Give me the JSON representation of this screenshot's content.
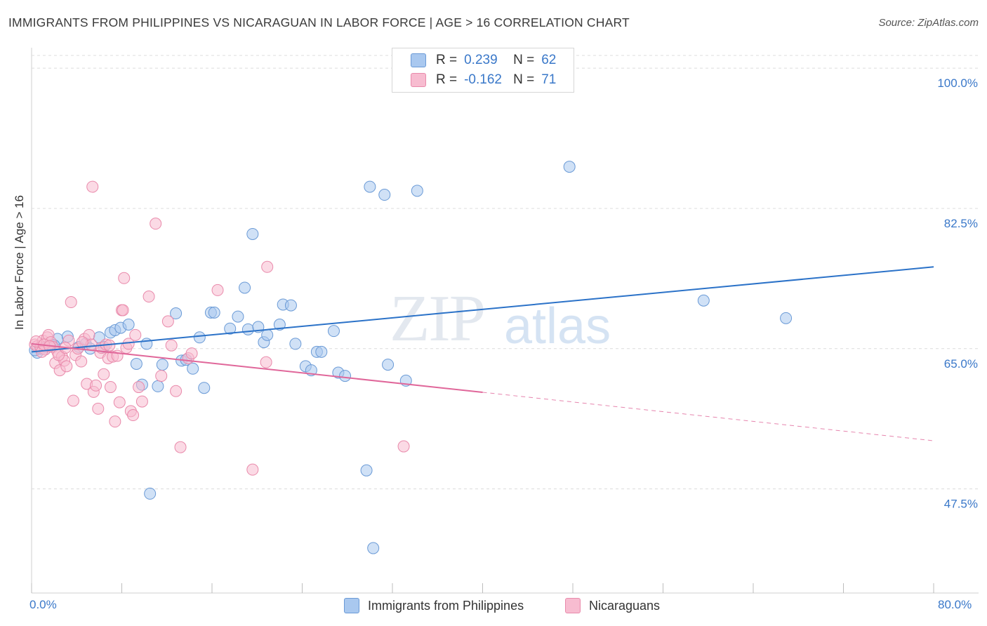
{
  "header": {
    "title": "IMMIGRANTS FROM PHILIPPINES VS NICARAGUAN IN LABOR FORCE | AGE > 16 CORRELATION CHART",
    "source": "Source: ZipAtlas.com"
  },
  "legend": {
    "rows": [
      {
        "r_label": "R =",
        "r_value": "0.239",
        "n_label": "N =",
        "n_value": "62"
      },
      {
        "r_label": "R =",
        "r_value": "-0.162",
        "n_label": "N =",
        "n_value": "71"
      }
    ]
  },
  "watermark": {
    "part1": "ZIP",
    "part2": "atlas"
  },
  "colors": {
    "philippines_fill": "#a9c8ef",
    "philippines_stroke": "#6a9ad6",
    "philippines_line": "#2b72c8",
    "nicaraguans_fill": "#f7bcd0",
    "nicaraguans_stroke": "#e98aab",
    "nicaraguans_line": "#e0679a",
    "tick_label": "#3a78c9"
  },
  "chart_data": {
    "type": "scatter",
    "title": "IMMIGRANTS FROM PHILIPPINES VS NICARAGUAN IN LABOR FORCE | AGE > 16 CORRELATION CHART",
    "xlabel": "",
    "ylabel": "In Labor Force | Age > 16",
    "xlim": [
      0,
      80
    ],
    "ylim": [
      34.5,
      101.5
    ],
    "x_tick_labels": [
      "0.0%",
      "80.0%"
    ],
    "y_ticks": [
      47.5,
      65.0,
      82.5,
      100.0
    ],
    "y_tick_labels": [
      "47.5%",
      "65.0%",
      "82.5%",
      "100.0%"
    ],
    "grid": true,
    "legend_position": "top-center",
    "series": [
      {
        "name": "Immigrants from Philippines",
        "r": 0.239,
        "n": 62,
        "trend": {
          "x": [
            0,
            80
          ],
          "y": [
            64.6,
            75.2
          ],
          "dashed_from": null
        },
        "points": [
          [
            0.5,
            64.5
          ],
          [
            1.0,
            65.1
          ],
          [
            1.4,
            65.3
          ],
          [
            1.8,
            65.5
          ],
          [
            2.3,
            66.2
          ],
          [
            3.2,
            66.5
          ],
          [
            4.2,
            65.2
          ],
          [
            4.8,
            65.6
          ],
          [
            5.2,
            65.0
          ],
          [
            6.0,
            66.4
          ],
          [
            6.4,
            65.2
          ],
          [
            7.0,
            67.0
          ],
          [
            7.4,
            67.3
          ],
          [
            7.9,
            67.6
          ],
          [
            8.6,
            68.0
          ],
          [
            9.3,
            63.1
          ],
          [
            9.8,
            60.5
          ],
          [
            10.2,
            65.6
          ],
          [
            11.2,
            60.3
          ],
          [
            11.6,
            63.0
          ],
          [
            12.8,
            69.4
          ],
          [
            13.3,
            63.5
          ],
          [
            13.7,
            63.6
          ],
          [
            14.3,
            62.5
          ],
          [
            14.9,
            66.4
          ],
          [
            15.3,
            60.1
          ],
          [
            15.9,
            69.5
          ],
          [
            16.2,
            69.5
          ],
          [
            17.6,
            67.5
          ],
          [
            18.3,
            69.0
          ],
          [
            18.9,
            72.6
          ],
          [
            19.2,
            67.4
          ],
          [
            19.6,
            79.3
          ],
          [
            20.1,
            67.7
          ],
          [
            20.6,
            65.8
          ],
          [
            20.9,
            66.7
          ],
          [
            22.0,
            68.0
          ],
          [
            22.3,
            70.5
          ],
          [
            23.0,
            70.4
          ],
          [
            23.4,
            65.6
          ],
          [
            24.3,
            62.8
          ],
          [
            24.8,
            62.3
          ],
          [
            25.3,
            64.6
          ],
          [
            25.7,
            64.6
          ],
          [
            26.8,
            67.2
          ],
          [
            27.2,
            62.0
          ],
          [
            27.8,
            61.6
          ],
          [
            29.7,
            49.8
          ],
          [
            30.0,
            85.2
          ],
          [
            30.3,
            40.1
          ],
          [
            31.3,
            84.2
          ],
          [
            31.6,
            63.0
          ],
          [
            33.2,
            61.0
          ],
          [
            34.2,
            84.7
          ],
          [
            47.7,
            87.7
          ],
          [
            59.6,
            71.0
          ],
          [
            66.9,
            68.8
          ],
          [
            10.5,
            46.9
          ],
          [
            0.3,
            64.8
          ],
          [
            0.8,
            65.0
          ],
          [
            1.2,
            64.9
          ],
          [
            2.0,
            65.4
          ]
        ]
      },
      {
        "name": "Nicaraguans",
        "r": -0.162,
        "n": 71,
        "trend": {
          "x": [
            0,
            80
          ],
          "y": [
            65.6,
            53.5
          ],
          "dashed_from": 40
        },
        "points": [
          [
            0.3,
            65.5
          ],
          [
            0.5,
            65.3
          ],
          [
            0.8,
            65.2
          ],
          [
            1.0,
            66.0
          ],
          [
            1.2,
            64.9
          ],
          [
            1.4,
            66.4
          ],
          [
            1.5,
            66.7
          ],
          [
            1.7,
            65.8
          ],
          [
            1.9,
            65.2
          ],
          [
            2.1,
            63.2
          ],
          [
            2.3,
            64.6
          ],
          [
            2.5,
            62.3
          ],
          [
            2.7,
            64.0
          ],
          [
            2.9,
            63.5
          ],
          [
            3.1,
            62.8
          ],
          [
            3.3,
            66.0
          ],
          [
            3.5,
            70.8
          ],
          [
            3.7,
            58.5
          ],
          [
            3.9,
            64.2
          ],
          [
            4.1,
            65.0
          ],
          [
            4.4,
            63.4
          ],
          [
            4.7,
            66.2
          ],
          [
            4.9,
            60.6
          ],
          [
            5.1,
            66.7
          ],
          [
            5.3,
            65.5
          ],
          [
            5.5,
            59.6
          ],
          [
            5.7,
            60.4
          ],
          [
            5.9,
            57.5
          ],
          [
            6.1,
            64.5
          ],
          [
            6.2,
            65.1
          ],
          [
            6.4,
            61.8
          ],
          [
            6.6,
            65.5
          ],
          [
            6.8,
            63.8
          ],
          [
            7.0,
            60.2
          ],
          [
            7.2,
            64.0
          ],
          [
            7.4,
            55.9
          ],
          [
            7.6,
            64.1
          ],
          [
            7.8,
            58.3
          ],
          [
            8.0,
            69.8
          ],
          [
            8.2,
            73.8
          ],
          [
            8.4,
            65.1
          ],
          [
            8.6,
            65.6
          ],
          [
            8.8,
            57.2
          ],
          [
            9.0,
            56.7
          ],
          [
            9.2,
            66.7
          ],
          [
            9.5,
            60.2
          ],
          [
            9.8,
            58.4
          ],
          [
            10.4,
            71.5
          ],
          [
            11.0,
            80.6
          ],
          [
            11.5,
            61.6
          ],
          [
            12.1,
            68.4
          ],
          [
            12.4,
            65.4
          ],
          [
            12.8,
            59.7
          ],
          [
            13.2,
            52.7
          ],
          [
            13.9,
            63.8
          ],
          [
            14.2,
            64.4
          ],
          [
            16.5,
            72.3
          ],
          [
            19.6,
            49.9
          ],
          [
            20.8,
            63.3
          ],
          [
            20.9,
            75.2
          ],
          [
            33.0,
            52.8
          ],
          [
            5.4,
            85.2
          ],
          [
            8.1,
            69.8
          ],
          [
            0.4,
            65.9
          ],
          [
            0.9,
            64.6
          ],
          [
            1.1,
            65.5
          ],
          [
            1.6,
            65.3
          ],
          [
            2.4,
            64.2
          ],
          [
            3.0,
            65.1
          ],
          [
            4.5,
            65.8
          ],
          [
            6.9,
            65.4
          ]
        ]
      }
    ]
  },
  "bottom_legend": {
    "items": [
      {
        "label": "Immigrants from Philippines"
      },
      {
        "label": "Nicaraguans"
      }
    ]
  }
}
